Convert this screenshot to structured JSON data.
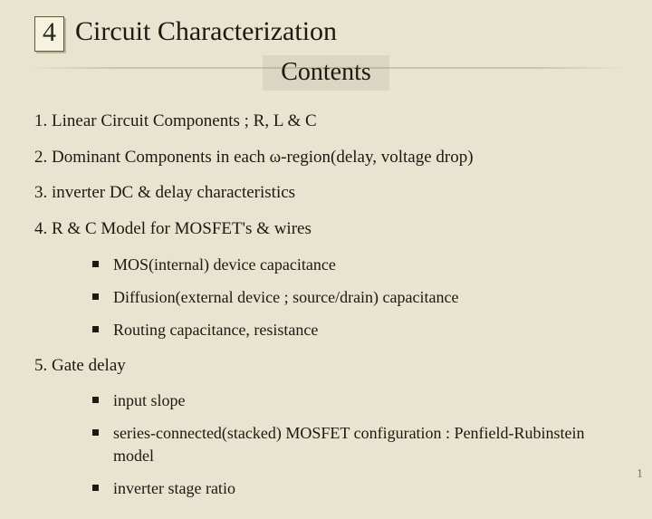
{
  "chapter_number": "4",
  "main_title": "Circuit Characterization",
  "subtitle": "Contents",
  "items": {
    "i1": "1. Linear Circuit Components ; R, L & C",
    "i2": "2. Dominant Components in each ω-region(delay, voltage drop)",
    "i3": "3. inverter DC & delay characteristics",
    "i4": "4. R & C Model for MOSFET's & wires",
    "i4_subs": {
      "a": "MOS(internal) device capacitance",
      "b": "Diffusion(external device ; source/drain) capacitance",
      "c": "Routing capacitance, resistance"
    },
    "i5": "5. Gate delay",
    "i5_subs": {
      "a": "input slope",
      "b": "series-connected(stacked) MOSFET configuration : Penfield-Rubinstein model",
      "c": "inverter stage ratio"
    }
  },
  "page_number": "1",
  "colors": {
    "background": "#e8e4d0",
    "text": "#1a1a10",
    "box_border": "#5a5a3a",
    "subtitle_bg": "#dad6c2",
    "pagenum": "#7a7758"
  }
}
